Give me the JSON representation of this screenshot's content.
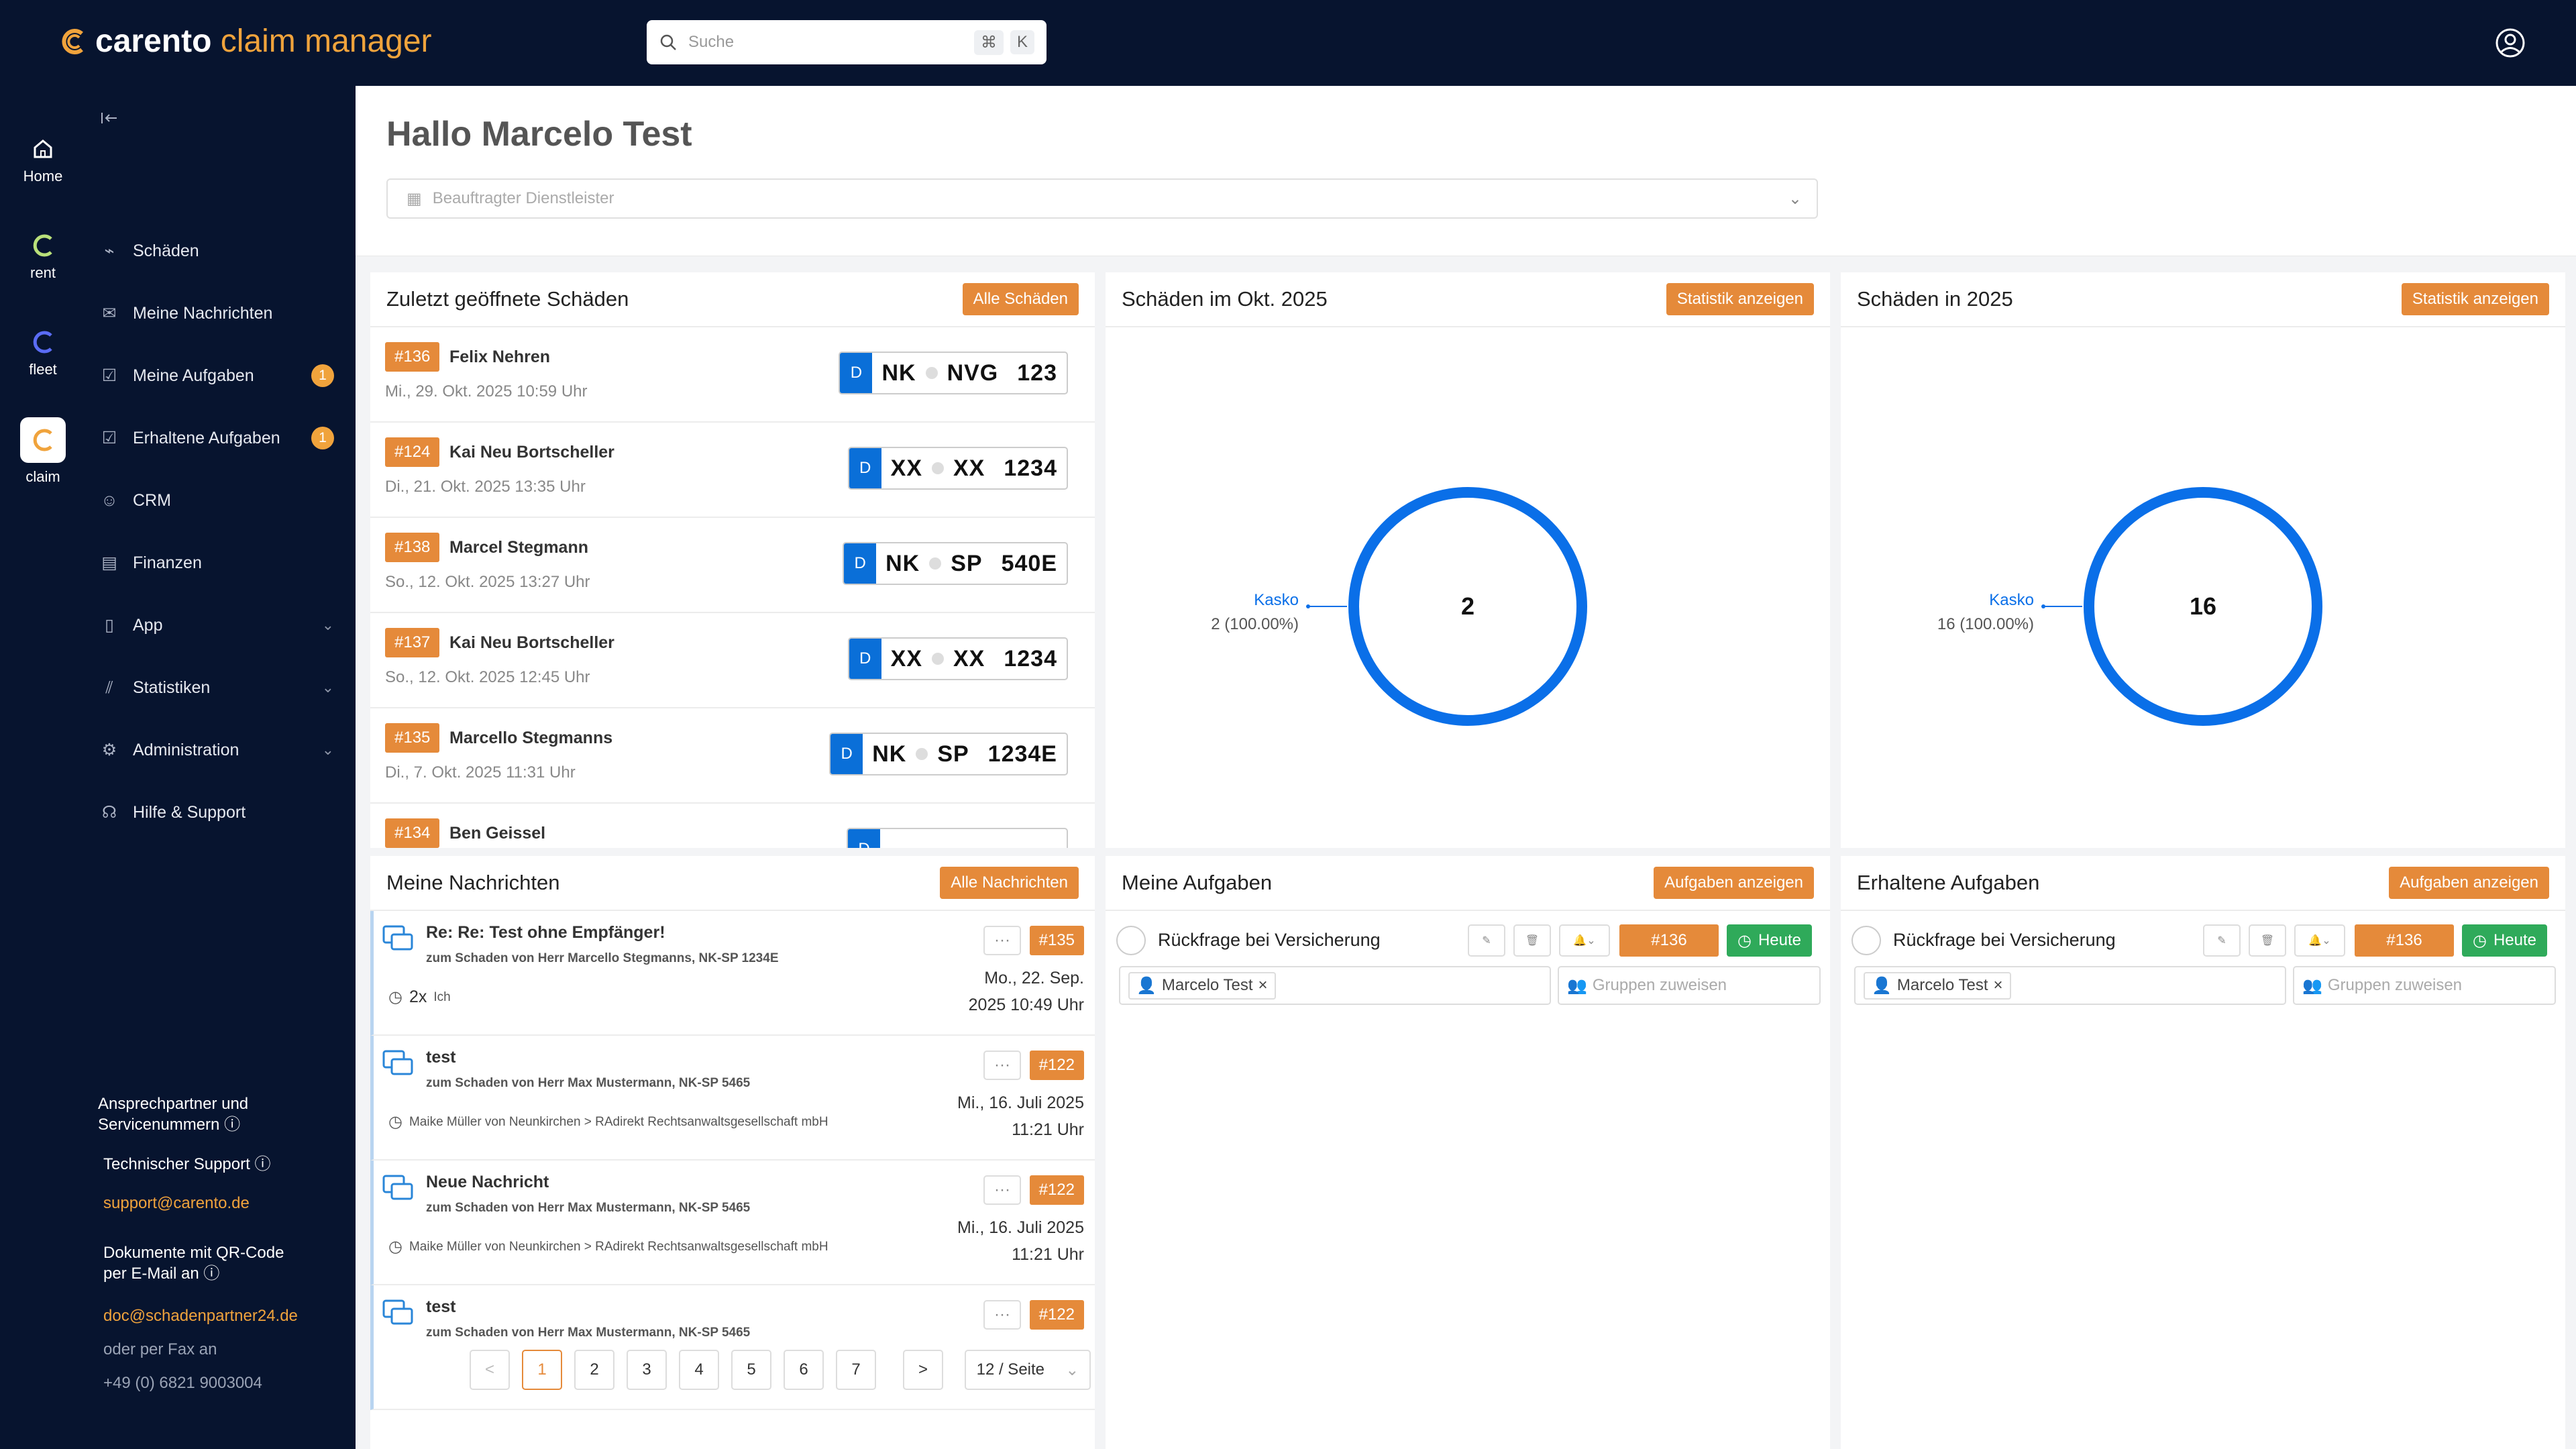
{
  "app": {
    "name": "carento",
    "name_accent": "claim manager"
  },
  "search": {
    "placeholder": "Suche",
    "key1": "⌘",
    "key2": "K"
  },
  "rail": [
    {
      "label": "Home",
      "icon": "home-icon"
    },
    {
      "label": "rent",
      "icon": "rent-logo-icon"
    },
    {
      "label": "fleet",
      "icon": "fleet-logo-icon"
    },
    {
      "label": "claim",
      "icon": "claim-logo-icon"
    }
  ],
  "nav": [
    {
      "label": "Schäden",
      "icon": "damage-icon"
    },
    {
      "label": "Meine Nachrichten",
      "icon": "mail-icon"
    },
    {
      "label": "Meine Aufgaben",
      "icon": "tasks-icon",
      "badge": "1"
    },
    {
      "label": "Erhaltene Aufgaben",
      "icon": "inbox-icon",
      "badge": "1"
    },
    {
      "label": "CRM",
      "icon": "users-icon"
    },
    {
      "label": "Finanzen",
      "icon": "document-icon"
    },
    {
      "label": "App",
      "icon": "phone-icon",
      "expandable": true
    },
    {
      "label": "Statistiken",
      "icon": "stats-icon",
      "expandable": true
    },
    {
      "label": "Administration",
      "icon": "settings-icon",
      "expandable": true
    },
    {
      "label": "Hilfe & Support",
      "icon": "support-icon"
    }
  ],
  "contact": {
    "heading1": "Ansprechpartner und",
    "heading2": "Servicenummern",
    "tech": "Technischer Support",
    "tech_email": "support@carento.de",
    "docs1": "Dokumente mit QR-Code",
    "docs2": "per E-Mail an",
    "docs_email": "doc@schadenpartner24.de",
    "fax_label": "oder per Fax an",
    "fax": "+49 (0) 6821 9003004"
  },
  "header": {
    "greeting": "Hallo Marcelo Test",
    "select_placeholder": "Beauftragter Dienstleister"
  },
  "recent": {
    "title": "Zuletzt geöffnete Schäden",
    "button": "Alle Schäden",
    "rows": [
      {
        "id": "#136",
        "name": "Felix Nehren",
        "date": "Mi., 29. Okt. 2025 10:59 Uhr",
        "country": "D",
        "p1": "NK",
        "p2": "NVG",
        "p3": "123"
      },
      {
        "id": "#124",
        "name": "Kai Neu Bortscheller",
        "date": "Di., 21. Okt. 2025 13:35 Uhr",
        "country": "D",
        "p1": "XX",
        "p2": "XX",
        "p3": "1234"
      },
      {
        "id": "#138",
        "name": "Marcel Stegmann",
        "date": "So., 12. Okt. 2025 13:27 Uhr",
        "country": "D",
        "p1": "NK",
        "p2": "SP",
        "p3": "540E"
      },
      {
        "id": "#137",
        "name": "Kai Neu Bortscheller",
        "date": "So., 12. Okt. 2025 12:45 Uhr",
        "country": "D",
        "p1": "XX",
        "p2": "XX",
        "p3": "1234"
      },
      {
        "id": "#135",
        "name": "Marcello Stegmanns",
        "date": "Di., 7. Okt. 2025 11:31 Uhr",
        "country": "D",
        "p1": "NK",
        "p2": "SP",
        "p3": "1234E"
      },
      {
        "id": "#134",
        "name": "Ben Geissel",
        "date": "",
        "country": "D",
        "p1": "",
        "p2": "",
        "p3": ""
      }
    ]
  },
  "month_chart": {
    "title": "Schäden im Okt. 2025",
    "button": "Statistik anzeigen",
    "chart_data": {
      "type": "pie",
      "categories": [
        "Kasko"
      ],
      "values": [
        2
      ],
      "center_label": "2",
      "slice_label": "Kasko",
      "slice_value": "2 (100.00%)",
      "color": "#0a6fe8"
    }
  },
  "year_chart": {
    "title": "Schäden in 2025",
    "button": "Statistik anzeigen",
    "chart_data": {
      "type": "pie",
      "categories": [
        "Kasko"
      ],
      "values": [
        16
      ],
      "center_label": "16",
      "slice_label": "Kasko",
      "slice_value": "16 (100.00%)",
      "color": "#0a6fe8"
    }
  },
  "messages": {
    "title": "Meine Nachrichten",
    "button": "Alle Nachrichten",
    "rows": [
      {
        "title": "Re: Re: Test ohne Empfänger!",
        "sub": "zum Schaden von Herr Marcello Stegmanns, NK-SP 1234E",
        "meta_count": "2x",
        "meta": "Ich",
        "tag": "#135",
        "date1": "Mo., 22. Sep.",
        "date2": "2025 10:49 Uhr"
      },
      {
        "title": "test",
        "sub": "zum Schaden von Herr Max Mustermann, NK-SP 5465",
        "meta_count": "",
        "meta": "Maike Müller von Neunkirchen > RAdirekt Rechtsanwaltsgesellschaft mbH",
        "tag": "#122",
        "date1": "Mi., 16. Juli 2025",
        "date2": "11:21 Uhr"
      },
      {
        "title": "Neue Nachricht",
        "sub": "zum Schaden von Herr Max Mustermann, NK-SP 5465",
        "meta_count": "",
        "meta": "Maike Müller von Neunkirchen > RAdirekt Rechtsanwaltsgesellschaft mbH",
        "tag": "#122",
        "date1": "Mi., 16. Juli 2025",
        "date2": "11:21 Uhr"
      },
      {
        "title": "test",
        "sub": "zum Schaden von Herr Max Mustermann, NK-SP 5465",
        "meta_count": "",
        "meta": "",
        "tag": "#122",
        "date1": "",
        "date2": ""
      }
    ],
    "pager": {
      "prev": "<",
      "next": ">",
      "pages": [
        "1",
        "2",
        "3",
        "4",
        "5",
        "6",
        "7"
      ],
      "current": "1",
      "per_page": "12 / Seite"
    }
  },
  "my_tasks": {
    "title": "Meine Aufgaben",
    "button": "Aufgaben anzeigen",
    "task": {
      "title": "Rückfrage bei Versicherung",
      "tag": "#136",
      "due": "Heute",
      "assignee": "Marcelo Test",
      "group_placeholder": "Gruppen zuweisen"
    }
  },
  "received_tasks": {
    "title": "Erhaltene Aufgaben",
    "button": "Aufgaben anzeigen",
    "task": {
      "title": "Rückfrage bei Versicherung",
      "tag": "#136",
      "due": "Heute",
      "assignee": "Marcelo Test",
      "group_placeholder": "Gruppen zuweisen"
    }
  },
  "colors": {
    "brand_orange": "#e58a3a",
    "navy": "#07142f",
    "blue": "#0a6fe8",
    "green": "#2faa5a"
  }
}
